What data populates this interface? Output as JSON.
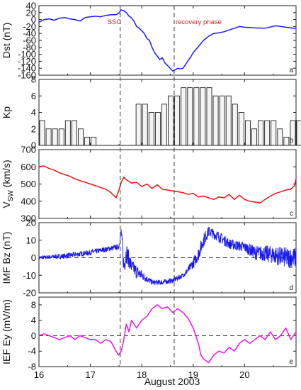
{
  "chart_data": {
    "type": "line",
    "x_axis": {
      "label": "August  2003",
      "range": [
        16,
        21
      ],
      "ticks": [
        16,
        17,
        18,
        19,
        20
      ]
    },
    "markers": [
      {
        "x": 17.58,
        "label": "SSC",
        "color": "#d22222"
      },
      {
        "x": 18.63,
        "label": "recovery phase",
        "color": "#d22222"
      }
    ],
    "panels": [
      {
        "id": "a",
        "letter": "a",
        "type": "line",
        "ylabel": "Dst (nT)",
        "ylim": [
          -160,
          40
        ],
        "yticks": [
          40,
          20,
          0,
          -20,
          -40,
          -60,
          -80,
          -100,
          -120,
          -140,
          -160
        ],
        "color": "#1a1aff",
        "zero_line": false,
        "series": [
          {
            "x": [
              16.0,
              16.1,
              16.2,
              16.3,
              16.4,
              16.5,
              16.6,
              16.7,
              16.8,
              16.9,
              17.0,
              17.1,
              17.2,
              17.3,
              17.4,
              17.5,
              17.55,
              17.6,
              17.65,
              17.7,
              17.75,
              17.8,
              17.85,
              17.9,
              17.95,
              18.0,
              18.05,
              18.1,
              18.15,
              18.2,
              18.25,
              18.3,
              18.35,
              18.4,
              18.45,
              18.5,
              18.55,
              18.6,
              18.65,
              18.7,
              18.75,
              18.8,
              18.85,
              18.9,
              18.95,
              19.0,
              19.1,
              19.2,
              19.3,
              19.4,
              19.5,
              19.6,
              19.7,
              19.8,
              19.9,
              20.0,
              20.2,
              20.4,
              20.6,
              20.8,
              21.0
            ],
            "values": [
              -8,
              0,
              2,
              -2,
              4,
              6,
              2,
              0,
              -4,
              6,
              8,
              10,
              8,
              12,
              14,
              14,
              18,
              28,
              25,
              20,
              10,
              5,
              -5,
              -20,
              -25,
              -32,
              -40,
              -55,
              -60,
              -80,
              -95,
              -105,
              -115,
              -110,
              -125,
              -132,
              -140,
              -148,
              -145,
              -140,
              -142,
              -140,
              -130,
              -118,
              -108,
              -95,
              -78,
              -60,
              -48,
              -40,
              -38,
              -35,
              -30,
              -25,
              -20,
              -22,
              -24,
              -25,
              -18,
              -22,
              -26
            ]
          }
        ]
      },
      {
        "id": "b",
        "letter": "b",
        "type": "bar",
        "ylabel": "Kp",
        "ylim": [
          0,
          8
        ],
        "yticks": [
          8,
          6,
          4,
          2,
          0
        ],
        "color": "#222222",
        "zero_line": false,
        "bin": 0.125,
        "values": [
          3,
          2,
          2,
          2,
          3,
          3,
          2,
          1,
          1,
          0,
          0,
          0,
          0,
          0,
          0,
          5,
          5,
          4,
          4,
          5,
          6,
          6,
          7,
          7,
          7,
          7,
          7,
          6,
          6,
          6,
          5,
          4,
          3,
          2,
          3,
          3,
          3,
          2,
          1,
          3,
          3,
          2,
          3,
          3,
          3,
          3,
          3,
          5
        ]
      },
      {
        "id": "c",
        "letter": "c",
        "type": "line",
        "ylabel_main": "V",
        "ylabel_sub": "SW",
        "ylabel_unit": " (km/s)",
        "ylim": [
          300,
          700
        ],
        "yticks": [
          700,
          600,
          500,
          400,
          300
        ],
        "color": "#ee1111",
        "zero_line": false,
        "series": [
          {
            "x": [
              16.0,
              16.1,
              16.2,
              16.3,
              16.4,
              16.5,
              16.6,
              16.7,
              16.8,
              16.9,
              17.0,
              17.1,
              17.2,
              17.3,
              17.4,
              17.5,
              17.55,
              17.6,
              17.65,
              17.7,
              17.8,
              17.9,
              18.0,
              18.1,
              18.2,
              18.3,
              18.4,
              18.5,
              18.6,
              18.7,
              18.8,
              18.9,
              19.0,
              19.1,
              19.2,
              19.3,
              19.4,
              19.5,
              19.6,
              19.7,
              19.8,
              19.9,
              20.0,
              20.1,
              20.2,
              20.3,
              20.4,
              20.5,
              20.6,
              20.7,
              20.8,
              20.9,
              20.97,
              21.0
            ],
            "values": [
              600,
              605,
              590,
              580,
              565,
              555,
              545,
              530,
              520,
              510,
              500,
              490,
              480,
              470,
              450,
              420,
              460,
              510,
              540,
              525,
              505,
              510,
              485,
              500,
              475,
              495,
              470,
              465,
              460,
              455,
              450,
              440,
              445,
              425,
              430,
              420,
              410,
              425,
              420,
              440,
              410,
              435,
              410,
              400,
              395,
              390,
              410,
              430,
              445,
              455,
              465,
              470,
              490,
              530
            ]
          }
        ]
      },
      {
        "id": "d",
        "letter": "d",
        "type": "noisy",
        "ylabel": "IMF  Bz (nT)",
        "ylim": [
          -20,
          20
        ],
        "yticks": [
          20,
          10,
          0,
          -10,
          -20
        ],
        "color": "#1a1aee",
        "zero_line": true,
        "envelope": {
          "x": [
            16.0,
            16.5,
            17.0,
            17.5,
            17.55,
            17.6,
            17.65,
            17.7,
            17.8,
            17.9,
            18.0,
            18.1,
            18.2,
            18.4,
            18.6,
            18.8,
            18.9,
            19.0,
            19.1,
            19.2,
            19.3,
            19.5,
            19.7,
            20.0,
            20.2,
            20.5,
            20.8,
            21.0
          ],
          "values": [
            0,
            1,
            3,
            6,
            6,
            15,
            -5,
            3,
            -5,
            -8,
            -10,
            -12,
            -14,
            -14,
            -13,
            -10,
            -7,
            -3,
            2,
            10,
            15,
            12,
            8,
            6,
            3,
            2,
            0,
            0
          ],
          "amp": [
            1,
            1.5,
            1.5,
            1.5,
            1.5,
            3,
            6,
            6,
            4,
            4,
            3,
            2,
            1.5,
            1.5,
            1.5,
            1.5,
            2,
            3,
            4,
            4,
            3,
            3,
            3,
            3,
            4,
            5,
            6,
            6
          ]
        }
      },
      {
        "id": "e",
        "letter": "e",
        "type": "line",
        "ylabel": "IEF Ey (mV/m)",
        "ylim": [
          -8,
          10
        ],
        "yticks": [
          8,
          4,
          0,
          -4,
          -8
        ],
        "color": "#ee11ee",
        "zero_line": true,
        "series": [
          {
            "x": [
              16.0,
              16.1,
              16.2,
              16.3,
              16.4,
              16.5,
              16.6,
              16.7,
              16.8,
              16.9,
              17.0,
              17.1,
              17.2,
              17.3,
              17.4,
              17.5,
              17.55,
              17.6,
              17.65,
              17.7,
              17.75,
              17.8,
              17.85,
              17.9,
              18.0,
              18.1,
              18.2,
              18.3,
              18.4,
              18.5,
              18.6,
              18.7,
              18.8,
              18.9,
              19.0,
              19.05,
              19.1,
              19.15,
              19.2,
              19.25,
              19.3,
              19.4,
              19.5,
              19.6,
              19.7,
              19.8,
              19.9,
              20.0,
              20.1,
              20.2,
              20.3,
              20.4,
              20.5,
              20.6,
              20.7,
              20.8,
              20.9,
              21.0
            ],
            "values": [
              0,
              0.5,
              0,
              -0.5,
              -1,
              -0.5,
              0,
              -1,
              0,
              -0.5,
              -1,
              -1,
              -2,
              -1,
              -1.5,
              -4,
              -5,
              -4,
              -1,
              3,
              1,
              4,
              3,
              2,
              4,
              5,
              7,
              8,
              7,
              7.5,
              6,
              7,
              6,
              4.5,
              2,
              0,
              -2,
              -5,
              -6,
              -6.5,
              -7,
              -5,
              -4,
              -4.5,
              -3,
              -4,
              -2,
              -1,
              -2,
              -1,
              0,
              -1,
              1,
              -1,
              0,
              2,
              -1,
              1
            ]
          }
        ]
      }
    ]
  }
}
